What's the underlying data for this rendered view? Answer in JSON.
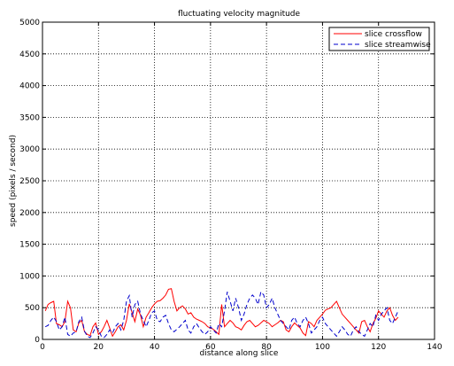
{
  "chart_data": {
    "type": "line",
    "title": "fluctuating velocity magnitude",
    "xlabel": "distance along slice",
    "ylabel": "speed (pixels / second)",
    "xlim": [
      0,
      140
    ],
    "ylim": [
      0,
      5000
    ],
    "xticks": [
      0,
      20,
      40,
      60,
      80,
      100,
      120,
      140
    ],
    "yticks": [
      0,
      500,
      1000,
      1500,
      2000,
      2500,
      3000,
      3500,
      4000,
      4500,
      5000
    ],
    "grid": true,
    "legend_position": "top-right",
    "series": [
      {
        "name": "slice crossflow",
        "color": "#ff0000",
        "dash": "solid",
        "x": [
          1,
          2,
          3,
          4,
          5,
          6,
          7,
          8,
          9,
          10,
          11,
          12,
          13,
          14,
          15,
          16,
          17,
          18,
          19,
          20,
          21,
          22,
          23,
          24,
          25,
          26,
          27,
          28,
          29,
          30,
          31,
          32,
          33,
          34,
          35,
          36,
          37,
          38,
          39,
          40,
          41,
          42,
          43,
          44,
          45,
          46,
          47,
          48,
          49,
          50,
          51,
          52,
          53,
          54,
          55,
          56,
          57,
          58,
          59,
          60,
          61,
          62,
          63,
          64,
          65,
          66,
          67,
          68,
          69,
          70,
          71,
          72,
          73,
          74,
          75,
          76,
          77,
          78,
          79,
          80,
          81,
          82,
          83,
          84,
          85,
          86,
          87,
          88,
          89,
          90,
          91,
          92,
          93,
          94,
          95,
          96,
          97,
          98,
          99,
          100,
          101,
          102,
          103,
          104,
          105,
          106,
          107,
          108,
          109,
          110,
          111,
          112,
          113,
          114,
          115,
          116,
          117,
          118,
          119,
          120,
          121,
          122,
          123,
          124,
          125,
          126,
          127
        ],
        "y": [
          450,
          550,
          580,
          600,
          250,
          230,
          200,
          280,
          600,
          500,
          150,
          120,
          260,
          300,
          120,
          80,
          60,
          200,
          260,
          80,
          120,
          200,
          300,
          180,
          50,
          120,
          200,
          230,
          150,
          300,
          560,
          420,
          280,
          480,
          380,
          200,
          350,
          420,
          500,
          560,
          600,
          610,
          650,
          700,
          790,
          800,
          600,
          450,
          500,
          530,
          480,
          400,
          420,
          350,
          320,
          300,
          280,
          250,
          200,
          180,
          160,
          120,
          80,
          550,
          200,
          250,
          300,
          260,
          200,
          180,
          150,
          220,
          280,
          300,
          250,
          200,
          220,
          260,
          300,
          280,
          250,
          200,
          230,
          260,
          300,
          280,
          150,
          120,
          200,
          260,
          220,
          180,
          100,
          60,
          280,
          250,
          200,
          300,
          350,
          400,
          460,
          480,
          500,
          550,
          600,
          500,
          400,
          350,
          300,
          250,
          200,
          150,
          100,
          280,
          300,
          200,
          120,
          250,
          330,
          450,
          400,
          350,
          450,
          500,
          380,
          300,
          350
        ]
      },
      {
        "name": "slice streamwise",
        "color": "#0000cc",
        "dash": "dashed",
        "x": [
          1,
          2,
          3,
          4,
          5,
          6,
          7,
          8,
          9,
          10,
          11,
          12,
          13,
          14,
          15,
          16,
          17,
          18,
          19,
          20,
          21,
          22,
          23,
          24,
          25,
          26,
          27,
          28,
          29,
          30,
          31,
          32,
          33,
          34,
          35,
          36,
          37,
          38,
          39,
          40,
          41,
          42,
          43,
          44,
          45,
          46,
          47,
          48,
          49,
          50,
          51,
          52,
          53,
          54,
          55,
          56,
          57,
          58,
          59,
          60,
          61,
          62,
          63,
          64,
          65,
          66,
          67,
          68,
          69,
          70,
          71,
          72,
          73,
          74,
          75,
          76,
          77,
          78,
          79,
          80,
          81,
          82,
          83,
          84,
          85,
          86,
          87,
          88,
          89,
          90,
          91,
          92,
          93,
          94,
          95,
          96,
          97,
          98,
          99,
          100,
          101,
          102,
          103,
          104,
          105,
          106,
          107,
          108,
          109,
          110,
          111,
          112,
          113,
          114,
          115,
          116,
          117,
          118,
          119,
          120,
          121,
          122,
          123,
          124,
          125,
          126,
          127
        ],
        "y": [
          200,
          220,
          300,
          350,
          280,
          150,
          200,
          350,
          80,
          50,
          100,
          120,
          280,
          350,
          130,
          50,
          30,
          100,
          200,
          150,
          50,
          30,
          80,
          150,
          100,
          200,
          250,
          150,
          300,
          600,
          690,
          350,
          550,
          600,
          400,
          300,
          200,
          300,
          420,
          450,
          300,
          280,
          350,
          380,
          250,
          150,
          120,
          160,
          200,
          250,
          300,
          150,
          100,
          200,
          250,
          180,
          120,
          80,
          120,
          200,
          150,
          100,
          250,
          200,
          450,
          750,
          600,
          450,
          650,
          500,
          300,
          400,
          550,
          650,
          700,
          650,
          550,
          750,
          700,
          500,
          550,
          650,
          500,
          400,
          300,
          250,
          200,
          150,
          300,
          350,
          250,
          200,
          300,
          350,
          250,
          100,
          150,
          200,
          300,
          350,
          250,
          200,
          150,
          100,
          50,
          120,
          200,
          150,
          80,
          50,
          150,
          200,
          120,
          80,
          50,
          150,
          250,
          200,
          380,
          300,
          400,
          450,
          500,
          300,
          250,
          350,
          450
        ]
      }
    ]
  }
}
